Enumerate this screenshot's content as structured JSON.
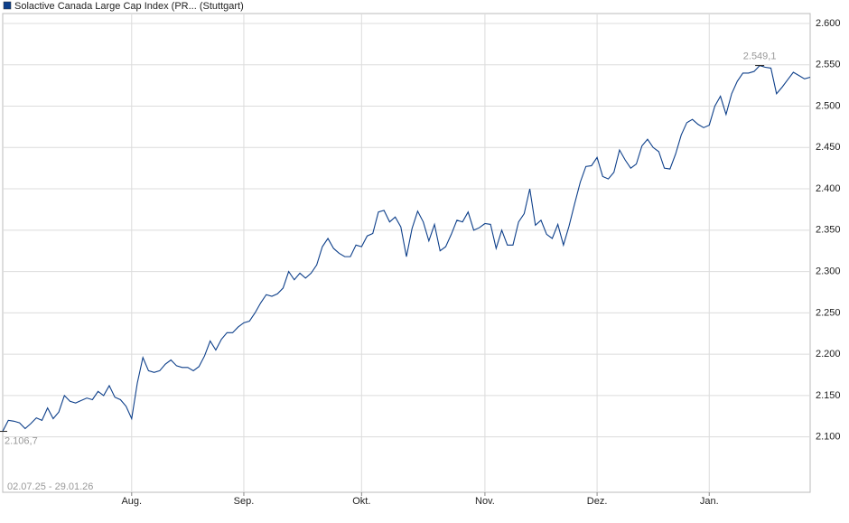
{
  "chart_data": {
    "type": "line",
    "legend_label": "Solactive Canada Large Cap Index (PR... (Stuttgart)",
    "date_range": "02.07.25 - 29.01.26",
    "categories": [
      null,
      null,
      null,
      null,
      null,
      null,
      null,
      null,
      null,
      null,
      null,
      null,
      null,
      null,
      null,
      null,
      null,
      null,
      null,
      null,
      null,
      null,
      null,
      "Aug.",
      null,
      null,
      null,
      null,
      null,
      null,
      null,
      null,
      null,
      null,
      null,
      null,
      null,
      null,
      null,
      null,
      null,
      null,
      null,
      "Sep.",
      null,
      null,
      null,
      null,
      null,
      null,
      null,
      null,
      null,
      null,
      null,
      null,
      null,
      null,
      null,
      null,
      null,
      null,
      null,
      null,
      "Okt.",
      null,
      null,
      null,
      null,
      null,
      null,
      null,
      null,
      null,
      null,
      null,
      null,
      null,
      null,
      null,
      null,
      null,
      null,
      null,
      null,
      null,
      "Nov.",
      null,
      null,
      null,
      null,
      null,
      null,
      null,
      null,
      null,
      null,
      null,
      null,
      null,
      null,
      null,
      null,
      null,
      null,
      null,
      "Dez.",
      null,
      null,
      null,
      null,
      null,
      null,
      null,
      null,
      null,
      null,
      null,
      null,
      null,
      null,
      null,
      null,
      null,
      null,
      null,
      "Jan.",
      null,
      null,
      null,
      null,
      null,
      null,
      null,
      null,
      null,
      null,
      null,
      null,
      null,
      null,
      null,
      null,
      null,
      null
    ],
    "series": [
      {
        "name": "Solactive Canada Large Cap Index (PR... (Stuttgart)",
        "color": "#0d3f8a",
        "values": [
          2106.7,
          2120,
          2119,
          2117,
          2110,
          2116,
          2123,
          2120,
          2135,
          2122,
          2130,
          2150,
          2143,
          2141,
          2144,
          2147,
          2145,
          2155,
          2150,
          2162,
          2148,
          2145,
          2137,
          2122,
          2165,
          2196,
          2180,
          2178,
          2180,
          2188,
          2193,
          2186,
          2184,
          2184,
          2180,
          2185,
          2198,
          2216,
          2205,
          2218,
          2226,
          2226,
          2233,
          2238,
          2240,
          2250,
          2262,
          2272,
          2270,
          2273,
          2280,
          2300,
          2290,
          2298,
          2292,
          2298,
          2308,
          2330,
          2340,
          2328,
          2322,
          2318,
          2318,
          2332,
          2330,
          2343,
          2346,
          2372,
          2374,
          2360,
          2366,
          2354,
          2318,
          2352,
          2373,
          2360,
          2337,
          2357,
          2325,
          2330,
          2345,
          2362,
          2360,
          2372,
          2350,
          2353,
          2358,
          2357,
          2328,
          2350,
          2332,
          2332,
          2360,
          2370,
          2400,
          2356,
          2362,
          2345,
          2340,
          2357,
          2332,
          2355,
          2382,
          2408,
          2427,
          2428,
          2438,
          2415,
          2412,
          2420,
          2447,
          2435,
          2425,
          2430,
          2452,
          2460,
          2450,
          2445,
          2425,
          2424,
          2442,
          2465,
          2480,
          2484,
          2478,
          2474,
          2477,
          2500,
          2512,
          2490,
          2515,
          2530,
          2540,
          2540,
          2542,
          2549.1,
          2547,
          2546,
          2515,
          2523,
          2532,
          2541,
          2537,
          2533,
          2535
        ],
        "value_labels": [
          "2.106,7",
          null,
          null,
          null,
          null,
          null,
          null,
          null,
          null,
          null,
          null,
          null,
          null,
          null,
          null,
          null,
          null,
          null,
          null,
          null,
          null,
          null,
          null,
          null,
          null,
          null,
          null,
          null,
          null,
          null,
          null,
          null,
          null,
          null,
          null,
          null,
          null,
          null,
          null,
          null,
          null,
          null,
          null,
          null,
          null,
          null,
          null,
          null,
          null,
          null,
          null,
          null,
          null,
          null,
          null,
          null,
          null,
          null,
          null,
          null,
          null,
          null,
          null,
          null,
          null,
          null,
          null,
          null,
          null,
          null,
          null,
          null,
          null,
          null,
          null,
          null,
          null,
          null,
          null,
          null,
          null,
          null,
          null,
          null,
          null,
          null,
          null,
          null,
          null,
          null,
          null,
          null,
          null,
          null,
          null,
          null,
          null,
          null,
          null,
          null,
          null,
          null,
          null,
          null,
          null,
          null,
          null,
          null,
          null,
          null,
          null,
          null,
          null,
          null,
          null,
          null,
          null,
          null,
          null,
          null,
          null,
          null,
          null,
          null,
          null,
          null,
          null,
          null,
          null,
          null,
          null,
          null,
          null,
          null,
          null,
          "2.549,1",
          null,
          null,
          null,
          null,
          null,
          null,
          null,
          null,
          null
        ]
      }
    ],
    "ylim": [
      2033,
      2612
    ],
    "yticks": [
      {
        "value": 2100,
        "label": "2.100"
      },
      {
        "value": 2150,
        "label": "2.150"
      },
      {
        "value": 2200,
        "label": "2.200"
      },
      {
        "value": 2250,
        "label": "2.250"
      },
      {
        "value": 2300,
        "label": "2.300"
      },
      {
        "value": 2350,
        "label": "2.350"
      },
      {
        "value": 2400,
        "label": "2.400"
      },
      {
        "value": 2450,
        "label": "2.450"
      },
      {
        "value": 2500,
        "label": "2.500"
      },
      {
        "value": 2550,
        "label": "2.550"
      },
      {
        "value": 2600,
        "label": "2.600"
      }
    ],
    "grid": true
  }
}
